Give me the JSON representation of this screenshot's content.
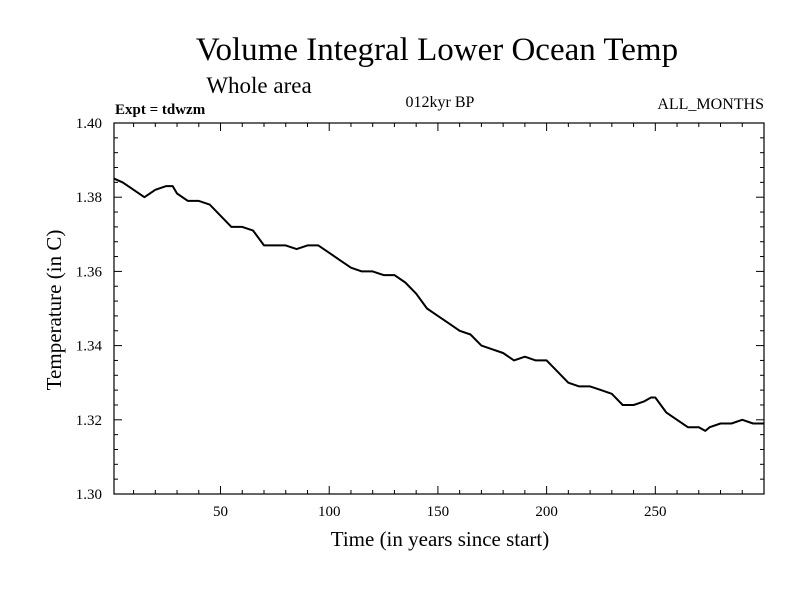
{
  "chart_data": {
    "type": "line",
    "title": "Volume Integral Lower Ocean Temp",
    "subtitle": "Whole area",
    "experiment_label": "Expt = tdwzm",
    "period_label": "012kyr BP",
    "season_label": "ALL_MONTHS",
    "xlabel": "Time (in years since start)",
    "ylabel": "Temperature (in C)",
    "xlim": [
      1,
      300
    ],
    "ylim": [
      1.3,
      1.4
    ],
    "x_ticks": [
      50,
      100,
      150,
      200,
      250
    ],
    "x_tick_labels": [
      "50",
      "100",
      "150",
      "200",
      "250"
    ],
    "y_ticks": [
      1.3,
      1.32,
      1.34,
      1.36,
      1.38,
      1.4
    ],
    "y_tick_labels": [
      "1.30",
      "1.32",
      "1.34",
      "1.36",
      "1.38",
      "1.40"
    ],
    "grid": false,
    "line_color": "#000000",
    "series": [
      {
        "x": [
          1,
          5,
          10,
          15,
          20,
          25,
          28,
          30,
          35,
          40,
          45,
          50,
          55,
          60,
          65,
          70,
          75,
          80,
          85,
          90,
          95,
          100,
          105,
          110,
          115,
          120,
          125,
          130,
          135,
          140,
          145,
          150,
          155,
          160,
          165,
          170,
          175,
          180,
          185,
          190,
          195,
          200,
          205,
          210,
          215,
          220,
          225,
          230,
          235,
          240,
          245,
          248,
          250,
          255,
          260,
          265,
          270,
          273,
          275,
          280,
          285,
          290,
          295,
          300
        ],
        "values": [
          1.385,
          1.384,
          1.382,
          1.38,
          1.382,
          1.383,
          1.383,
          1.381,
          1.379,
          1.379,
          1.378,
          1.375,
          1.372,
          1.372,
          1.371,
          1.367,
          1.367,
          1.367,
          1.366,
          1.367,
          1.367,
          1.365,
          1.363,
          1.361,
          1.36,
          1.36,
          1.359,
          1.359,
          1.357,
          1.354,
          1.35,
          1.348,
          1.346,
          1.344,
          1.343,
          1.34,
          1.339,
          1.338,
          1.336,
          1.337,
          1.336,
          1.336,
          1.333,
          1.33,
          1.329,
          1.329,
          1.328,
          1.327,
          1.324,
          1.324,
          1.325,
          1.326,
          1.326,
          1.322,
          1.32,
          1.318,
          1.318,
          1.317,
          1.318,
          1.319,
          1.319,
          1.32,
          1.319,
          1.319
        ]
      }
    ]
  }
}
